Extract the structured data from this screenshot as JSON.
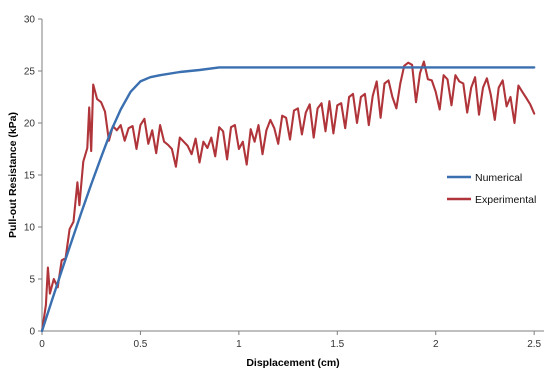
{
  "chart_data": {
    "type": "line",
    "title": "",
    "xlabel": "Displacement (cm)",
    "ylabel": "Pull-out Resistance (kPa)",
    "xlim": [
      0,
      2.55
    ],
    "ylim": [
      0,
      30
    ],
    "x_ticks": [
      0,
      0.5,
      1,
      1.5,
      2,
      2.5
    ],
    "x_tick_labels": [
      "0",
      "0.5",
      "1",
      "1.5",
      "2",
      "2.5"
    ],
    "y_ticks": [
      0,
      5,
      10,
      15,
      20,
      25,
      30
    ],
    "y_tick_labels": [
      "0",
      "5",
      "10",
      "15",
      "20",
      "25",
      "30"
    ],
    "grid": false,
    "legend_position": "right",
    "series": [
      {
        "name": "Numerical",
        "color": "#3a6fb0",
        "points": [
          [
            0,
            0
          ],
          [
            0.05,
            2.9
          ],
          [
            0.1,
            5.8
          ],
          [
            0.15,
            8.6
          ],
          [
            0.2,
            11.4
          ],
          [
            0.25,
            14.1
          ],
          [
            0.3,
            16.7
          ],
          [
            0.35,
            19.2
          ],
          [
            0.4,
            21.3
          ],
          [
            0.45,
            23.0
          ],
          [
            0.5,
            24.0
          ],
          [
            0.55,
            24.4
          ],
          [
            0.6,
            24.6
          ],
          [
            0.7,
            24.9
          ],
          [
            0.8,
            25.1
          ],
          [
            0.9,
            25.35
          ],
          [
            1.0,
            25.35
          ],
          [
            1.5,
            25.35
          ],
          [
            2.0,
            25.35
          ],
          [
            2.5,
            25.35
          ]
        ]
      },
      {
        "name": "Experimental",
        "color": "#b0353a",
        "points": [
          [
            0,
            0
          ],
          [
            0.02,
            2.5
          ],
          [
            0.03,
            6.1
          ],
          [
            0.04,
            3.6
          ],
          [
            0.06,
            5.0
          ],
          [
            0.08,
            4.2
          ],
          [
            0.1,
            6.8
          ],
          [
            0.12,
            7.0
          ],
          [
            0.14,
            9.8
          ],
          [
            0.16,
            10.5
          ],
          [
            0.18,
            14.3
          ],
          [
            0.19,
            12.1
          ],
          [
            0.21,
            16.3
          ],
          [
            0.23,
            17.6
          ],
          [
            0.24,
            21.5
          ],
          [
            0.25,
            17.3
          ],
          [
            0.26,
            23.7
          ],
          [
            0.28,
            22.3
          ],
          [
            0.3,
            22.0
          ],
          [
            0.32,
            21.1
          ],
          [
            0.34,
            18.3
          ],
          [
            0.36,
            19.7
          ],
          [
            0.38,
            19.3
          ],
          [
            0.4,
            19.8
          ],
          [
            0.42,
            18.3
          ],
          [
            0.44,
            19.5
          ],
          [
            0.46,
            19.7
          ],
          [
            0.48,
            17.5
          ],
          [
            0.5,
            19.8
          ],
          [
            0.52,
            20.4
          ],
          [
            0.54,
            18.0
          ],
          [
            0.56,
            19.3
          ],
          [
            0.58,
            17.1
          ],
          [
            0.6,
            19.8
          ],
          [
            0.62,
            18.2
          ],
          [
            0.64,
            17.9
          ],
          [
            0.66,
            17.5
          ],
          [
            0.68,
            15.8
          ],
          [
            0.7,
            18.6
          ],
          [
            0.72,
            18.2
          ],
          [
            0.74,
            17.8
          ],
          [
            0.76,
            17.0
          ],
          [
            0.78,
            18.5
          ],
          [
            0.8,
            16.2
          ],
          [
            0.82,
            18.2
          ],
          [
            0.84,
            17.6
          ],
          [
            0.86,
            18.6
          ],
          [
            0.88,
            16.8
          ],
          [
            0.9,
            19.6
          ],
          [
            0.92,
            19.2
          ],
          [
            0.94,
            16.5
          ],
          [
            0.96,
            19.6
          ],
          [
            0.98,
            19.8
          ],
          [
            1.0,
            17.5
          ],
          [
            1.02,
            18.2
          ],
          [
            1.04,
            16.0
          ],
          [
            1.06,
            19.4
          ],
          [
            1.08,
            18.2
          ],
          [
            1.1,
            19.8
          ],
          [
            1.12,
            17.0
          ],
          [
            1.14,
            19.3
          ],
          [
            1.16,
            20.3
          ],
          [
            1.18,
            19.5
          ],
          [
            1.2,
            18.0
          ],
          [
            1.22,
            20.7
          ],
          [
            1.24,
            20.5
          ],
          [
            1.26,
            18.4
          ],
          [
            1.28,
            21.2
          ],
          [
            1.3,
            21.4
          ],
          [
            1.32,
            18.9
          ],
          [
            1.34,
            21.0
          ],
          [
            1.36,
            21.8
          ],
          [
            1.38,
            18.6
          ],
          [
            1.4,
            21.4
          ],
          [
            1.42,
            21.9
          ],
          [
            1.44,
            19.2
          ],
          [
            1.46,
            22.1
          ],
          [
            1.48,
            19.0
          ],
          [
            1.5,
            21.7
          ],
          [
            1.52,
            21.9
          ],
          [
            1.54,
            19.5
          ],
          [
            1.56,
            22.5
          ],
          [
            1.58,
            22.8
          ],
          [
            1.6,
            20.0
          ],
          [
            1.62,
            22.5
          ],
          [
            1.64,
            22.8
          ],
          [
            1.66,
            19.8
          ],
          [
            1.68,
            22.6
          ],
          [
            1.7,
            24.0
          ],
          [
            1.72,
            20.5
          ],
          [
            1.74,
            23.8
          ],
          [
            1.76,
            24.1
          ],
          [
            1.78,
            22.5
          ],
          [
            1.8,
            21.4
          ],
          [
            1.82,
            23.8
          ],
          [
            1.84,
            25.5
          ],
          [
            1.86,
            25.8
          ],
          [
            1.88,
            25.6
          ],
          [
            1.9,
            22.0
          ],
          [
            1.92,
            24.8
          ],
          [
            1.94,
            25.9
          ],
          [
            1.96,
            24.2
          ],
          [
            1.98,
            24.1
          ],
          [
            2.0,
            23.0
          ],
          [
            2.02,
            21.3
          ],
          [
            2.04,
            24.6
          ],
          [
            2.06,
            24.2
          ],
          [
            2.08,
            21.7
          ],
          [
            2.1,
            24.6
          ],
          [
            2.12,
            24.0
          ],
          [
            2.14,
            23.8
          ],
          [
            2.16,
            21.0
          ],
          [
            2.18,
            23.4
          ],
          [
            2.2,
            24.4
          ],
          [
            2.22,
            20.8
          ],
          [
            2.24,
            23.4
          ],
          [
            2.26,
            24.3
          ],
          [
            2.28,
            22.7
          ],
          [
            2.3,
            20.3
          ],
          [
            2.32,
            23.4
          ],
          [
            2.34,
            24.1
          ],
          [
            2.36,
            21.6
          ],
          [
            2.38,
            22.5
          ],
          [
            2.4,
            20.0
          ],
          [
            2.42,
            23.6
          ],
          [
            2.44,
            23.0
          ],
          [
            2.46,
            22.4
          ],
          [
            2.48,
            21.8
          ],
          [
            2.5,
            20.9
          ]
        ]
      }
    ]
  }
}
